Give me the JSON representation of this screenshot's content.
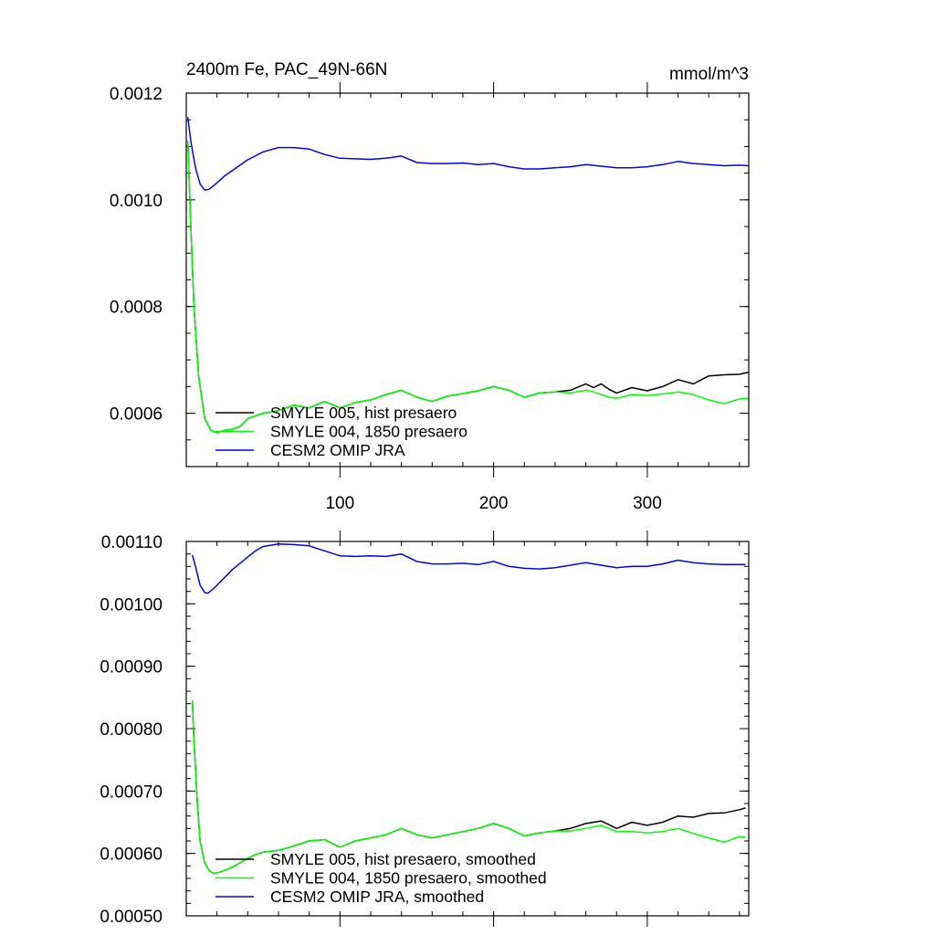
{
  "chart_data": [
    {
      "type": "line",
      "title": "2400m Fe, PAC_49N-66N",
      "units": "mmol/m^3",
      "xlim": [
        0,
        366
      ],
      "ylim": [
        0.0005,
        0.0012
      ],
      "yticks": [
        0.0006,
        0.0008,
        0.001,
        0.0012
      ],
      "ytick_labels": [
        "0.0006",
        "0.0008",
        "0.0010",
        "0.0012"
      ],
      "xticks": [
        100,
        200,
        300
      ],
      "xtick_labels": [
        "100",
        "200",
        "300"
      ],
      "legend_position": "bottom-left",
      "series": [
        {
          "name": "SMYLE 005, hist presaero",
          "color": "#000000",
          "x": [
            1,
            3,
            5,
            8,
            12,
            16,
            20,
            25,
            30,
            35,
            40,
            45,
            50,
            60,
            70,
            80,
            90,
            100,
            110,
            120,
            130,
            140,
            150,
            160,
            170,
            180,
            190,
            200,
            210,
            220,
            230,
            240,
            250,
            260,
            265,
            270,
            275,
            280,
            290,
            300,
            310,
            320,
            330,
            340,
            350,
            360,
            366
          ],
          "values": [
            0.00111,
            0.00095,
            0.0008,
            0.00067,
            0.00059,
            0.000568,
            0.000563,
            0.000568,
            0.00057,
            0.000575,
            0.00059,
            0.000595,
            0.0006,
            0.000605,
            0.000615,
            0.00061,
            0.000622,
            0.00061,
            0.00062,
            0.000625,
            0.000635,
            0.000643,
            0.00063,
            0.000622,
            0.000632,
            0.000637,
            0.000642,
            0.00065,
            0.000643,
            0.00063,
            0.000638,
            0.00064,
            0.000643,
            0.000655,
            0.000648,
            0.000655,
            0.000645,
            0.000638,
            0.000648,
            0.000642,
            0.00065,
            0.000663,
            0.000655,
            0.00067,
            0.000672,
            0.000673,
            0.000677
          ]
        },
        {
          "name": "SMYLE 004, 1850 presaero",
          "color": "#00ff00",
          "x": [
            1,
            3,
            5,
            8,
            12,
            16,
            20,
            25,
            30,
            35,
            40,
            45,
            50,
            60,
            70,
            80,
            90,
            100,
            110,
            120,
            130,
            140,
            150,
            160,
            170,
            180,
            190,
            200,
            210,
            220,
            230,
            240,
            250,
            260,
            265,
            270,
            275,
            280,
            290,
            300,
            310,
            320,
            330,
            340,
            350,
            360,
            366
          ],
          "values": [
            0.00111,
            0.00095,
            0.0008,
            0.00067,
            0.00059,
            0.000568,
            0.000563,
            0.000568,
            0.00057,
            0.000575,
            0.00059,
            0.000595,
            0.0006,
            0.000605,
            0.000615,
            0.00061,
            0.000622,
            0.00061,
            0.00062,
            0.000625,
            0.000635,
            0.000643,
            0.00063,
            0.000622,
            0.000632,
            0.000637,
            0.000642,
            0.00065,
            0.000643,
            0.00063,
            0.000638,
            0.00064,
            0.000638,
            0.000643,
            0.00064,
            0.000635,
            0.00063,
            0.000628,
            0.000635,
            0.000633,
            0.000636,
            0.00064,
            0.000635,
            0.000625,
            0.000618,
            0.000627,
            0.000628
          ]
        },
        {
          "name": "CESM2 OMIP JRA",
          "color": "#0000ff",
          "x": [
            1,
            3,
            6,
            9,
            12,
            15,
            20,
            25,
            30,
            35,
            40,
            50,
            60,
            70,
            80,
            90,
            100,
            110,
            120,
            130,
            140,
            150,
            160,
            170,
            180,
            190,
            200,
            210,
            220,
            230,
            240,
            250,
            260,
            270,
            280,
            290,
            300,
            310,
            320,
            330,
            340,
            350,
            360,
            366
          ],
          "values": [
            0.001155,
            0.00111,
            0.00106,
            0.00103,
            0.001018,
            0.00102,
            0.001032,
            0.001045,
            0.001055,
            0.001065,
            0.001075,
            0.00109,
            0.001098,
            0.001098,
            0.001095,
            0.001085,
            0.001078,
            0.001077,
            0.001076,
            0.001078,
            0.001082,
            0.00107,
            0.001068,
            0.001068,
            0.001069,
            0.001066,
            0.001068,
            0.001062,
            0.001058,
            0.001058,
            0.00106,
            0.001062,
            0.001066,
            0.001063,
            0.00106,
            0.00106,
            0.001062,
            0.001066,
            0.001072,
            0.001068,
            0.001066,
            0.001064,
            0.001065,
            0.001064
          ]
        }
      ]
    },
    {
      "type": "line",
      "title": "",
      "xlim": [
        0,
        366
      ],
      "ylim": [
        0.0005,
        0.0011
      ],
      "yticks": [
        0.0005,
        0.0006,
        0.0007,
        0.0008,
        0.0009,
        0.001,
        0.0011
      ],
      "ytick_labels": [
        "0.00050",
        "0.00060",
        "0.00070",
        "0.00080",
        "0.00090",
        "0.00100",
        "0.00110"
      ],
      "xticks": [
        100,
        200,
        300
      ],
      "xtick_labels": [],
      "legend_position": "bottom-left",
      "series": [
        {
          "name": "SMYLE 005, hist presaero, smoothed",
          "color": "#000000",
          "x": [
            4,
            5,
            7,
            9,
            12,
            15,
            18,
            22,
            26,
            30,
            35,
            40,
            45,
            50,
            60,
            70,
            80,
            90,
            100,
            110,
            120,
            130,
            140,
            150,
            160,
            170,
            180,
            190,
            200,
            210,
            220,
            230,
            240,
            250,
            260,
            270,
            280,
            290,
            300,
            310,
            320,
            330,
            340,
            350,
            360,
            364
          ],
          "values": [
            0.000845,
            0.00078,
            0.00069,
            0.00062,
            0.000585,
            0.000572,
            0.000568,
            0.00057,
            0.000574,
            0.000578,
            0.000585,
            0.000592,
            0.000598,
            0.000602,
            0.000605,
            0.000612,
            0.00062,
            0.000622,
            0.00061,
            0.00062,
            0.000625,
            0.00063,
            0.00064,
            0.00063,
            0.000625,
            0.00063,
            0.000635,
            0.00064,
            0.000648,
            0.00064,
            0.000628,
            0.000633,
            0.000636,
            0.00064,
            0.000648,
            0.000652,
            0.00064,
            0.00065,
            0.000645,
            0.00065,
            0.00066,
            0.000658,
            0.000664,
            0.000665,
            0.00067,
            0.000673
          ]
        },
        {
          "name": "SMYLE 004, 1850 presaero, smoothed",
          "color": "#00ff00",
          "x": [
            4,
            5,
            7,
            9,
            12,
            15,
            18,
            22,
            26,
            30,
            35,
            40,
            45,
            50,
            60,
            70,
            80,
            90,
            100,
            110,
            120,
            130,
            140,
            150,
            160,
            170,
            180,
            190,
            200,
            210,
            220,
            230,
            240,
            250,
            260,
            270,
            280,
            290,
            300,
            310,
            320,
            330,
            340,
            350,
            360,
            364
          ],
          "values": [
            0.000845,
            0.00078,
            0.00069,
            0.00062,
            0.000585,
            0.000572,
            0.000568,
            0.00057,
            0.000574,
            0.000578,
            0.000585,
            0.000592,
            0.000598,
            0.000602,
            0.000605,
            0.000612,
            0.00062,
            0.000622,
            0.00061,
            0.00062,
            0.000625,
            0.00063,
            0.00064,
            0.00063,
            0.000625,
            0.00063,
            0.000635,
            0.00064,
            0.000648,
            0.00064,
            0.000628,
            0.000633,
            0.000636,
            0.000636,
            0.00064,
            0.000645,
            0.000635,
            0.000635,
            0.000633,
            0.000635,
            0.00064,
            0.000632,
            0.000625,
            0.000618,
            0.000627,
            0.000626
          ]
        },
        {
          "name": "CESM2 OMIP JRA, smoothed",
          "color": "#0000ff",
          "x": [
            4,
            6,
            9,
            12,
            14,
            18,
            22,
            26,
            30,
            35,
            40,
            45,
            50,
            60,
            70,
            80,
            90,
            100,
            110,
            120,
            130,
            140,
            150,
            160,
            170,
            180,
            190,
            200,
            210,
            220,
            230,
            240,
            250,
            260,
            270,
            280,
            290,
            300,
            310,
            320,
            330,
            340,
            350,
            360,
            364
          ],
          "values": [
            0.001078,
            0.00106,
            0.00103,
            0.001018,
            0.001017,
            0.001025,
            0.001035,
            0.001045,
            0.001055,
            0.001065,
            0.001075,
            0.001085,
            0.001092,
            0.001096,
            0.001095,
            0.001093,
            0.001085,
            0.001077,
            0.001076,
            0.001077,
            0.001076,
            0.00108,
            0.001068,
            0.001064,
            0.001064,
            0.001065,
            0.001063,
            0.001068,
            0.00106,
            0.001057,
            0.001056,
            0.001058,
            0.001062,
            0.001066,
            0.001062,
            0.001058,
            0.00106,
            0.00106,
            0.001064,
            0.00107,
            0.001066,
            0.001064,
            0.001063,
            0.001063,
            0.001063
          ]
        }
      ]
    }
  ]
}
